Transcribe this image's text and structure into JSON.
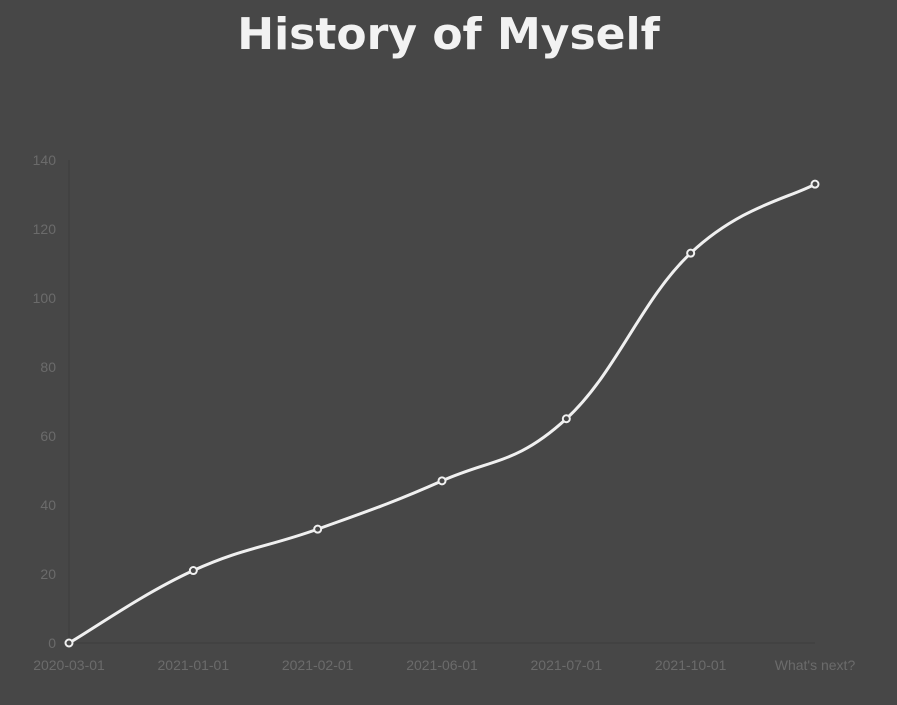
{
  "chart_data": {
    "type": "line",
    "title": "History of Myself",
    "xlabel": "",
    "ylabel": "",
    "categories": [
      "2020-03-01",
      "2021-01-01",
      "2021-02-01",
      "2021-06-01",
      "2021-07-01",
      "2021-10-01",
      "What's next?"
    ],
    "series": [
      {
        "values": [
          0,
          21,
          33,
          47,
          65,
          113,
          133
        ]
      }
    ],
    "ylim": [
      0,
      140
    ],
    "yticks": [
      0,
      20,
      40,
      60,
      80,
      100,
      120,
      140
    ],
    "grid": false,
    "legend": "none",
    "colors": {
      "background": "#474747",
      "line": "#f0f0f0",
      "axis": "#3c3c3c",
      "tick_text": "#6b6b6b",
      "title": "#f2f2f2"
    }
  }
}
